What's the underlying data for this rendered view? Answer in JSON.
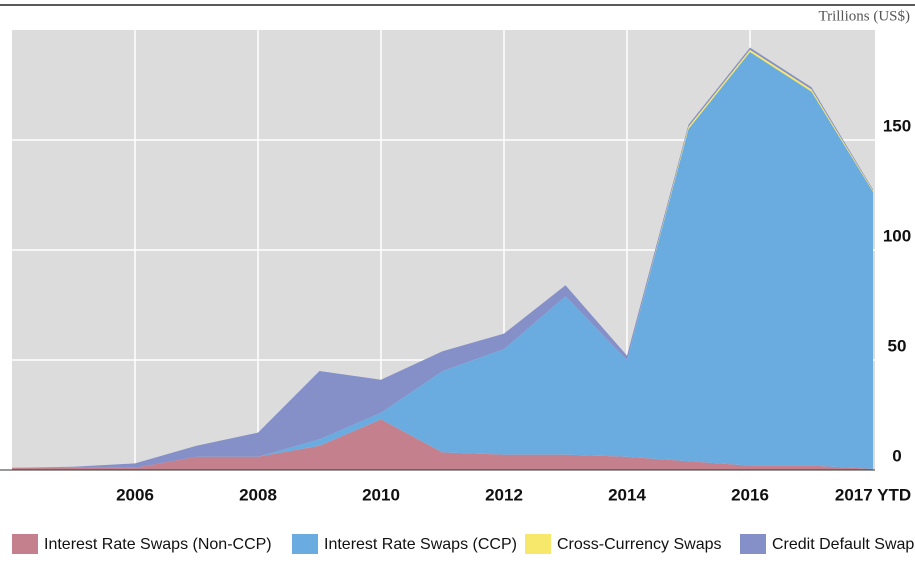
{
  "chart_data": {
    "type": "stacked_area",
    "axis_label": "Trillions (US$)",
    "categories": [
      null,
      null,
      "2006",
      null,
      "2008",
      null,
      "2010",
      null,
      "2012",
      null,
      "2014",
      null,
      "2016",
      null,
      "2017 YTD"
    ],
    "series": [
      {
        "name": "Interest Rate Swaps (Non-CCP)",
        "color": "#c4808c",
        "values": [
          1,
          1,
          1,
          6,
          6,
          11,
          23,
          8,
          7,
          7,
          6,
          4,
          2,
          2,
          0.5
        ]
      },
      {
        "name": "Interest Rate Swaps (CCP)",
        "color": "#6aace0",
        "values": [
          0,
          0,
          0,
          0,
          0,
          3,
          3,
          37,
          48,
          72,
          44,
          151,
          188,
          170,
          126
        ]
      },
      {
        "name": "Cross-Currency Swaps",
        "color": "#f7e76a",
        "values": [
          0,
          0,
          0,
          0,
          0,
          0,
          0,
          0,
          0,
          0,
          0,
          1,
          1,
          1,
          0.5
        ]
      },
      {
        "name": "Credit Default Swaps",
        "color": "#8590c8",
        "values": [
          0,
          0.5,
          2,
          5,
          11,
          31,
          15,
          9,
          7,
          5,
          2,
          1,
          1,
          1,
          0.5
        ]
      }
    ],
    "ylim": [
      0,
      200
    ],
    "yticks": [
      0,
      50,
      100,
      150
    ],
    "grid": true,
    "legend": "bottom"
  }
}
